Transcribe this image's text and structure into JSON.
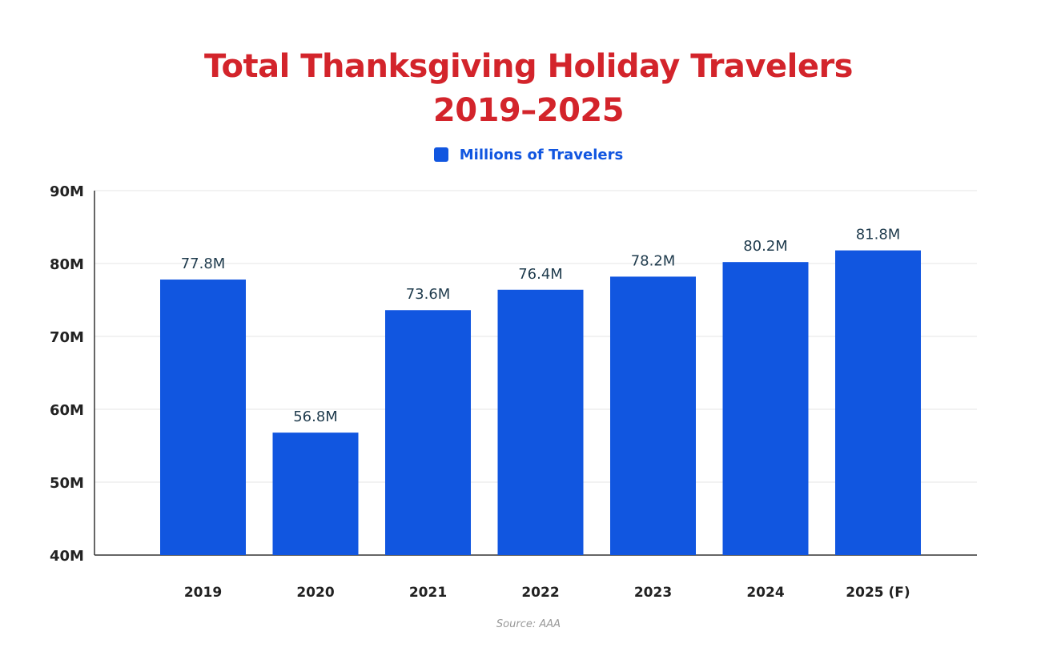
{
  "chart_data": {
    "type": "bar",
    "title": "Total Thanksgiving Holiday Travelers",
    "subtitle": "2019–2025",
    "categories": [
      "2019",
      "2020",
      "2021",
      "2022",
      "2023",
      "2024",
      "2025 (F)"
    ],
    "series": [
      {
        "name": "Millions of Travelers",
        "values": [
          77.8,
          56.8,
          73.6,
          76.4,
          78.2,
          80.2,
          81.8
        ],
        "color": "#1156e0"
      }
    ],
    "data_labels": [
      "77.8M",
      "56.8M",
      "73.6M",
      "76.4M",
      "78.2M",
      "80.2M",
      "81.8M"
    ],
    "ylim": [
      40,
      90
    ],
    "yticks": [
      40,
      50,
      60,
      70,
      80,
      90
    ],
    "ytick_labels": [
      "40M",
      "50M",
      "60M",
      "70M",
      "80M",
      "90M"
    ],
    "xlabel": "",
    "ylabel": "",
    "grid": true,
    "legend": "top-center",
    "title_color": "#d3242b",
    "source": "Source: AAA"
  }
}
